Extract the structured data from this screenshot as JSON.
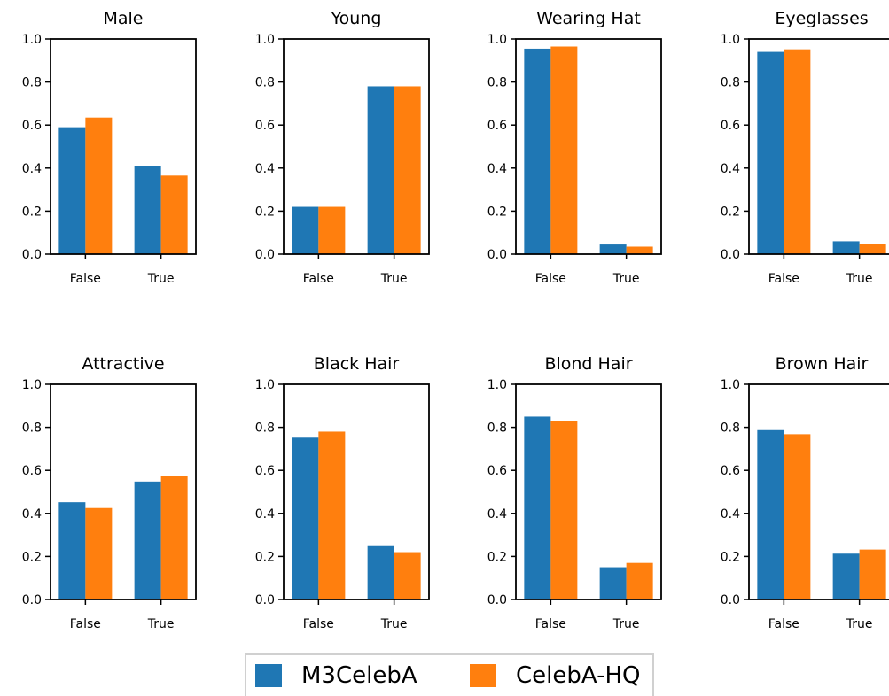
{
  "chart_data": {
    "type": "bar",
    "categories": [
      "False",
      "True"
    ],
    "ylim": [
      0,
      1
    ],
    "yticks": [
      "0.0",
      "0.2",
      "0.4",
      "0.6",
      "0.8",
      "1.0"
    ],
    "colors": {
      "M3CelebA": "#1f77b4",
      "CelebA-HQ": "#ff7f0e"
    },
    "legend": {
      "placement": "bottom-center",
      "entries": [
        "M3CelebA",
        "CelebA-HQ"
      ]
    },
    "panels": [
      {
        "title": "Male",
        "series": [
          {
            "name": "M3CelebA",
            "values": [
              0.59,
              0.41
            ]
          },
          {
            "name": "CelebA-HQ",
            "values": [
              0.635,
              0.365
            ]
          }
        ]
      },
      {
        "title": "Young",
        "series": [
          {
            "name": "M3CelebA",
            "values": [
              0.22,
              0.78
            ]
          },
          {
            "name": "CelebA-HQ",
            "values": [
              0.22,
              0.78
            ]
          }
        ]
      },
      {
        "title": "Wearing Hat",
        "series": [
          {
            "name": "M3CelebA",
            "values": [
              0.955,
              0.045
            ]
          },
          {
            "name": "CelebA-HQ",
            "values": [
              0.965,
              0.035
            ]
          }
        ]
      },
      {
        "title": "Eyeglasses",
        "series": [
          {
            "name": "M3CelebA",
            "values": [
              0.94,
              0.06
            ]
          },
          {
            "name": "CelebA-HQ",
            "values": [
              0.952,
              0.048
            ]
          }
        ]
      },
      {
        "title": "Attractive",
        "series": [
          {
            "name": "M3CelebA",
            "values": [
              0.452,
              0.548
            ]
          },
          {
            "name": "CelebA-HQ",
            "values": [
              0.425,
              0.575
            ]
          }
        ]
      },
      {
        "title": "Black Hair",
        "series": [
          {
            "name": "M3CelebA",
            "values": [
              0.752,
              0.248
            ]
          },
          {
            "name": "CelebA-HQ",
            "values": [
              0.78,
              0.22
            ]
          }
        ]
      },
      {
        "title": "Blond Hair",
        "series": [
          {
            "name": "M3CelebA",
            "values": [
              0.85,
              0.15
            ]
          },
          {
            "name": "CelebA-HQ",
            "values": [
              0.83,
              0.17
            ]
          }
        ]
      },
      {
        "title": "Brown Hair",
        "series": [
          {
            "name": "M3CelebA",
            "values": [
              0.787,
              0.213
            ]
          },
          {
            "name": "CelebA-HQ",
            "values": [
              0.768,
              0.232
            ]
          }
        ]
      }
    ]
  }
}
